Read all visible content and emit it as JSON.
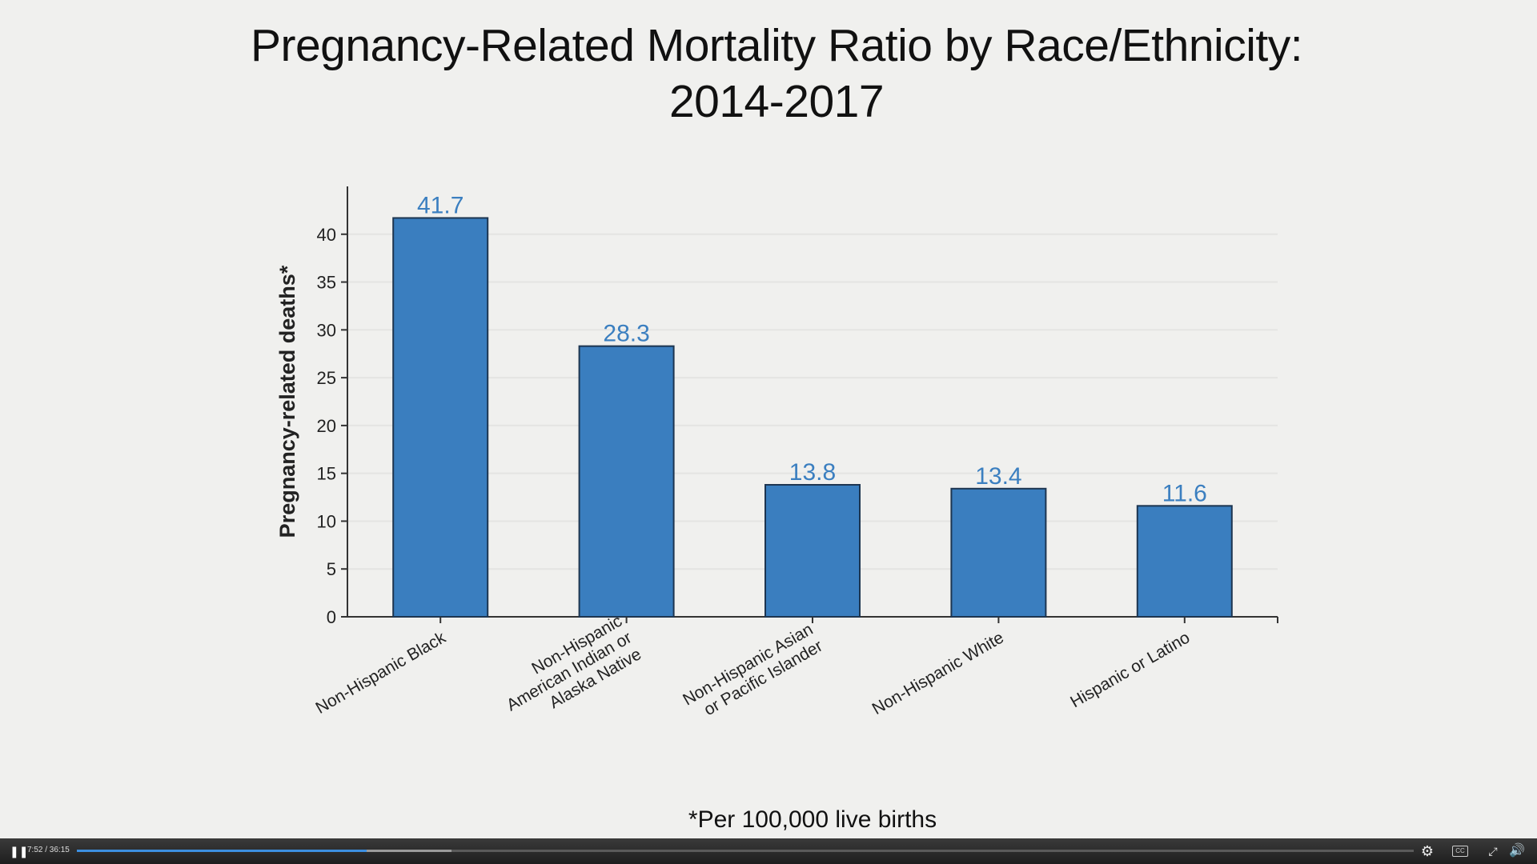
{
  "chart_data": {
    "type": "bar",
    "title": "Pregnancy-Related Mortality Ratio by Race/Ethnicity:",
    "subtitle": "2014-2017",
    "xlabel": "",
    "ylabel": "Pregnancy-related deaths*",
    "ylim": [
      0,
      45
    ],
    "yticks": [
      0,
      5,
      10,
      15,
      20,
      25,
      30,
      35,
      40
    ],
    "grid": true,
    "bar_color": "#3a7ebf",
    "label_color": "#3b7fc0",
    "categories": [
      [
        "Non-Hispanic Black"
      ],
      [
        "Non-Hispanic",
        "American Indian or",
        "Alaska Native"
      ],
      [
        "Non-Hispanic Asian",
        "or Pacific Islander"
      ],
      [
        "Non-Hispanic White"
      ],
      [
        "Hispanic or Latino"
      ]
    ],
    "values": [
      41.7,
      28.3,
      13.8,
      13.4,
      11.6
    ],
    "value_labels": [
      "41.7",
      "28.3",
      "13.8",
      "13.4",
      "11.6"
    ],
    "footnote": "*Per 100,000 live births"
  },
  "player": {
    "time": "7:52 / 36:15",
    "progress": 0.217,
    "buffered": 0.28,
    "play_state": "pause-icon",
    "progress_color": "#3d8fe0"
  }
}
